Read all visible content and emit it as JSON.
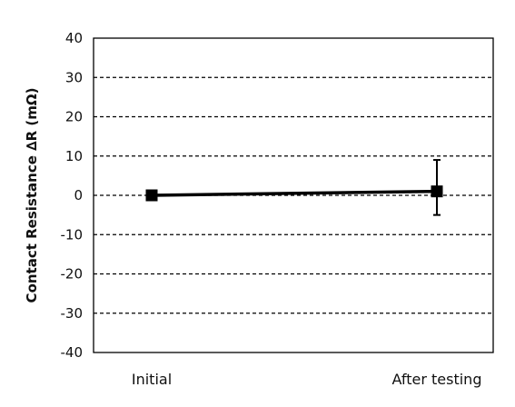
{
  "chart_data": {
    "type": "line",
    "title": "",
    "xlabel": "",
    "ylabel": "Contact Resistance ∆R (mΩ)",
    "categories": [
      "Initial",
      "After testing"
    ],
    "series": [
      {
        "values": [
          0,
          1
        ],
        "error_low": [
          0,
          6
        ],
        "error_high": [
          0,
          8
        ],
        "marker": "square",
        "color": "#000000"
      }
    ],
    "ylim": [
      -40,
      40
    ],
    "yticks": [
      40,
      30,
      20,
      10,
      0,
      -10,
      -20,
      -30,
      -40
    ],
    "grid": "horizontal-dashed",
    "legend": "none"
  }
}
